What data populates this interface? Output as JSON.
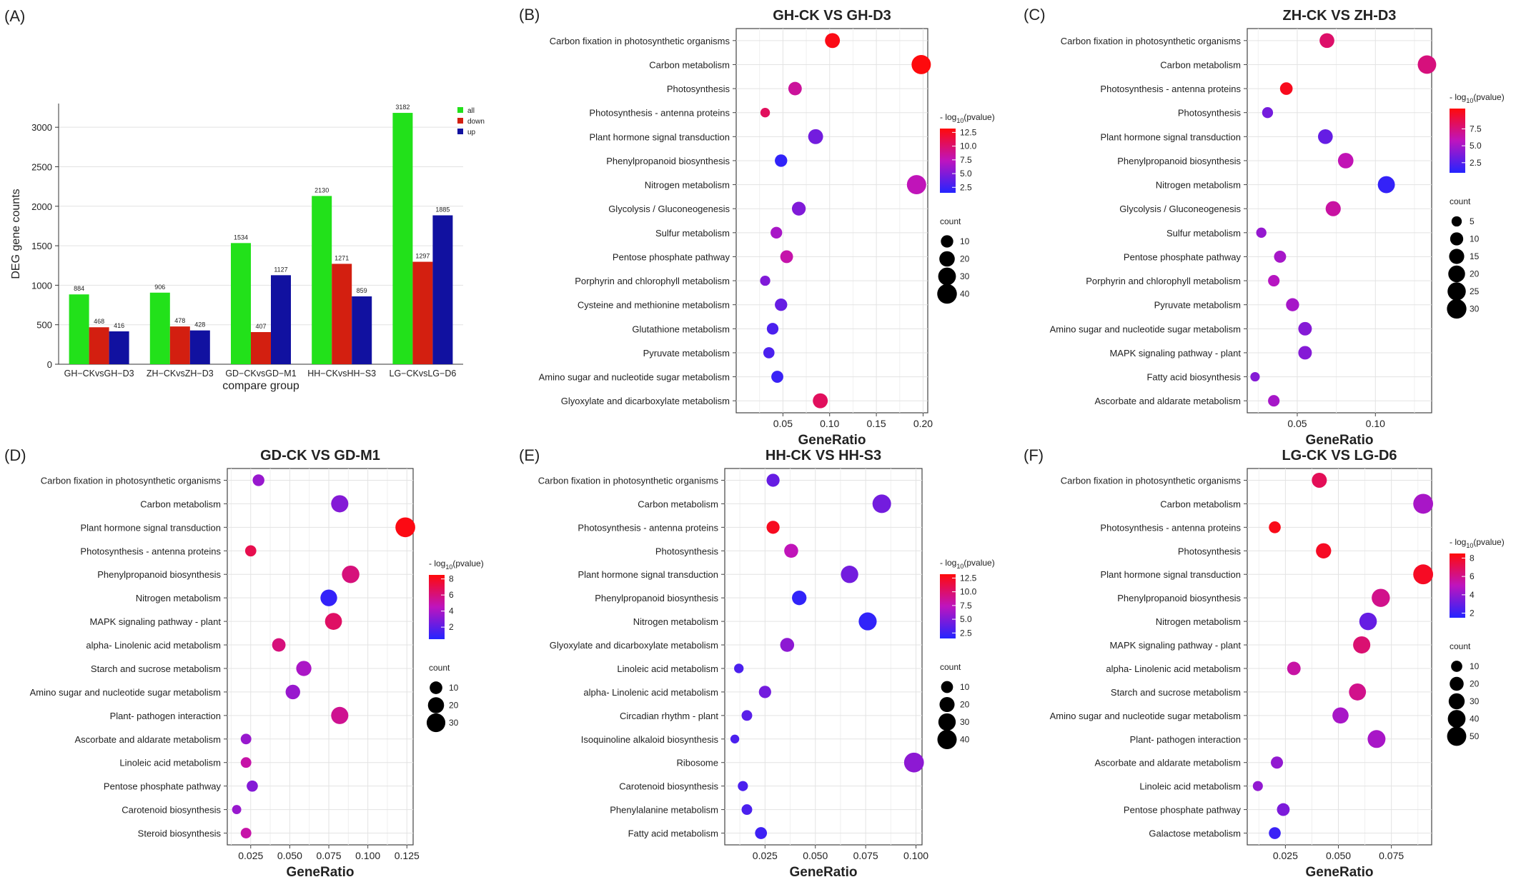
{
  "chart_data": [
    {
      "panel": "(A)",
      "type": "bar",
      "title": "",
      "xlabel": "compare group",
      "ylabel": "DEG gene counts",
      "ylim": [
        0,
        3300
      ],
      "yticks": [
        0,
        500,
        1000,
        1500,
        2000,
        2500,
        3000
      ],
      "grid": true,
      "legend_position": "top-right",
      "categories": [
        "GH−CKvsGH−D3",
        "ZH−CKvsZH−D3",
        "GD−CKvsGD−M1",
        "HH−CKvsHH−S3",
        "LG−CKvsLG−D6"
      ],
      "series": [
        {
          "name": "all",
          "color": "#22e11a",
          "values": [
            884,
            906,
            1534,
            2130,
            3182
          ]
        },
        {
          "name": "down",
          "color": "#d31f10",
          "values": [
            468,
            478,
            407,
            1271,
            1297
          ]
        },
        {
          "name": "up",
          "color": "#1111a0",
          "values": [
            416,
            428,
            1127,
            859,
            1885
          ]
        }
      ]
    },
    {
      "panel": "(B)",
      "type": "scatter",
      "title": "GH-CK VS GH-D3",
      "xlabel": "GeneRatio",
      "xlim": [
        0.0,
        0.205
      ],
      "xticks": [
        0.05,
        0.1,
        0.15,
        0.2
      ],
      "xtick_labels": [
        "0.05",
        "0.10",
        "0.15",
        "0.20"
      ],
      "grid": true,
      "color_legend": {
        "title": "- log10(pvalue)",
        "range": [
          1.5,
          13.2
        ],
        "ticks": [
          2.5,
          5.0,
          7.5,
          10.0,
          12.5
        ],
        "tick_labels": [
          "2.5",
          "5.0",
          "7.5",
          "10.0",
          "12.5"
        ]
      },
      "size_legend": {
        "title": "count",
        "range": [
          1,
          42
        ],
        "values": [
          10,
          20,
          30,
          40
        ]
      },
      "points": [
        {
          "term": "Carbon fixation in photosynthetic organisms",
          "x": 0.103,
          "logp": 12.8,
          "count": 18
        },
        {
          "term": "Carbon metabolism",
          "x": 0.198,
          "logp": 13.1,
          "count": 38
        },
        {
          "term": "Photosynthesis",
          "x": 0.063,
          "logp": 8.5,
          "count": 13
        },
        {
          "term": "Photosynthesis -  antenna proteins",
          "x": 0.031,
          "logp": 10.5,
          "count": 4
        },
        {
          "term": "Plant hormone signal transduction",
          "x": 0.085,
          "logp": 4.5,
          "count": 18
        },
        {
          "term": "Phenylpropanoid biosynthesis",
          "x": 0.048,
          "logp": 2.0,
          "count": 10
        },
        {
          "term": "Nitrogen metabolism",
          "x": 0.193,
          "logp": 7.5,
          "count": 38
        },
        {
          "term": "Glycolysis / Gluconeogenesis",
          "x": 0.067,
          "logp": 5.0,
          "count": 14
        },
        {
          "term": "Sulfur metabolism",
          "x": 0.043,
          "logp": 6.5,
          "count": 8
        },
        {
          "term": "Pentose phosphate pathway",
          "x": 0.054,
          "logp": 8.0,
          "count": 11
        },
        {
          "term": "Porphyrin and chlorophyll metabolism",
          "x": 0.031,
          "logp": 5.0,
          "count": 5
        },
        {
          "term": "Cysteine and methionine metabolism",
          "x": 0.048,
          "logp": 4.0,
          "count": 10
        },
        {
          "term": "Glutathione metabolism",
          "x": 0.039,
          "logp": 3.0,
          "count": 8
        },
        {
          "term": "Pyruvate metabolism",
          "x": 0.035,
          "logp": 3.0,
          "count": 7
        },
        {
          "term": "Amino sugar and nucleotide sugar metabolism",
          "x": 0.044,
          "logp": 2.3,
          "count": 9
        },
        {
          "term": "Glyoxylate and dicarboxylate metabolism",
          "x": 0.09,
          "logp": 10.5,
          "count": 18
        }
      ]
    },
    {
      "panel": "(C)",
      "type": "scatter",
      "title": "ZH-CK VS ZH-D3",
      "xlabel": "GeneRatio",
      "xlim": [
        0.018,
        0.136
      ],
      "xticks": [
        0.05,
        0.1
      ],
      "xtick_labels": [
        "0.05",
        "0.10"
      ],
      "grid": true,
      "color_legend": {
        "title": "- log10(pvalue)",
        "range": [
          1.0,
          10.5
        ],
        "ticks": [
          2.5,
          5.0,
          7.5
        ],
        "tick_labels": [
          "2.5",
          "5.0",
          "7.5"
        ]
      },
      "size_legend": {
        "title": "count",
        "range": [
          2,
          32
        ],
        "values": [
          5,
          10,
          15,
          20,
          25,
          30
        ]
      },
      "points": [
        {
          "term": "Carbon fixation in photosynthetic organisms",
          "x": 0.069,
          "logp": 8.0,
          "count": 14
        },
        {
          "term": "Carbon metabolism",
          "x": 0.133,
          "logp": 7.5,
          "count": 26
        },
        {
          "term": "Photosynthesis -  antenna proteins",
          "x": 0.043,
          "logp": 10.0,
          "count": 9
        },
        {
          "term": "Photosynthesis",
          "x": 0.031,
          "logp": 3.5,
          "count": 6
        },
        {
          "term": "Plant hormone signal transduction",
          "x": 0.068,
          "logp": 3.0,
          "count": 14
        },
        {
          "term": "Phenylpropanoid biosynthesis",
          "x": 0.081,
          "logp": 6.0,
          "count": 16
        },
        {
          "term": "Nitrogen metabolism",
          "x": 0.107,
          "logp": 1.5,
          "count": 21
        },
        {
          "term": "Glycolysis / Gluconeogenesis",
          "x": 0.073,
          "logp": 6.5,
          "count": 15
        },
        {
          "term": "Sulfur metabolism",
          "x": 0.027,
          "logp": 4.5,
          "count": 5
        },
        {
          "term": "Pentose phosphate pathway",
          "x": 0.039,
          "logp": 5.0,
          "count": 8
        },
        {
          "term": "Porphyrin and chlorophyll metabolism",
          "x": 0.035,
          "logp": 5.5,
          "count": 7
        },
        {
          "term": "Pyruvate metabolism",
          "x": 0.047,
          "logp": 5.0,
          "count": 10
        },
        {
          "term": "Amino sugar and nucleotide sugar metabolism",
          "x": 0.055,
          "logp": 4.0,
          "count": 11
        },
        {
          "term": "MAPK signaling pathway -  plant",
          "x": 0.055,
          "logp": 4.0,
          "count": 11
        },
        {
          "term": "Fatty acid biosynthesis",
          "x": 0.023,
          "logp": 4.0,
          "count": 4
        },
        {
          "term": "Ascorbate and aldarate metabolism",
          "x": 0.035,
          "logp": 5.0,
          "count": 7
        }
      ]
    },
    {
      "panel": "(D)",
      "type": "scatter",
      "title": "GD-CK VS GD-M1",
      "xlabel": "GeneRatio",
      "xlim": [
        0.01,
        0.129
      ],
      "xticks": [
        0.025,
        0.05,
        0.075,
        0.1,
        0.125
      ],
      "xtick_labels": [
        "0.025",
        "0.050",
        "0.075",
        "0.100",
        "0.125"
      ],
      "grid": true,
      "color_legend": {
        "title": "- log10(pvalue)",
        "range": [
          0.5,
          8.5
        ],
        "ticks": [
          2,
          4,
          6,
          8
        ],
        "tick_labels": [
          "2",
          "4",
          "6",
          "8"
        ]
      },
      "size_legend": {
        "title": "count",
        "range": [
          2,
          36
        ],
        "values": [
          10,
          20,
          30
        ]
      },
      "points": [
        {
          "term": "Carbon fixation in photosynthetic organisms",
          "x": 0.03,
          "logp": 3.5,
          "count": 8
        },
        {
          "term": "Carbon metabolism",
          "x": 0.082,
          "logp": 3.0,
          "count": 24
        },
        {
          "term": "Plant hormone signal transduction",
          "x": 0.124,
          "logp": 8.3,
          "count": 35
        },
        {
          "term": "Photosynthesis -  antenna proteins",
          "x": 0.025,
          "logp": 7.0,
          "count": 7
        },
        {
          "term": "Phenylpropanoid biosynthesis",
          "x": 0.089,
          "logp": 6.0,
          "count": 25
        },
        {
          "term": "Nitrogen metabolism",
          "x": 0.075,
          "logp": 0.9,
          "count": 22
        },
        {
          "term": "MAPK signaling pathway -  plant",
          "x": 0.078,
          "logp": 6.5,
          "count": 23
        },
        {
          "term": "alpha- Linolenic acid metabolism",
          "x": 0.043,
          "logp": 6.0,
          "count": 12
        },
        {
          "term": "Starch and sucrose metabolism",
          "x": 0.059,
          "logp": 4.0,
          "count": 17
        },
        {
          "term": "Amino sugar and nucleotide sugar metabolism",
          "x": 0.052,
          "logp": 3.5,
          "count": 15
        },
        {
          "term": "Plant- pathogen interaction",
          "x": 0.082,
          "logp": 5.5,
          "count": 24
        },
        {
          "term": "Ascorbate and aldarate metabolism",
          "x": 0.022,
          "logp": 3.5,
          "count": 6
        },
        {
          "term": "Linoleic acid metabolism",
          "x": 0.022,
          "logp": 5.0,
          "count": 6
        },
        {
          "term": "Pentose phosphate pathway",
          "x": 0.026,
          "logp": 3.0,
          "count": 7
        },
        {
          "term": "Carotenoid biosynthesis",
          "x": 0.016,
          "logp": 3.5,
          "count": 4
        },
        {
          "term": "Steroid biosynthesis",
          "x": 0.022,
          "logp": 5.0,
          "count": 6
        }
      ]
    },
    {
      "panel": "(E)",
      "type": "scatter",
      "title": "HH-CK VS HH-S3",
      "xlabel": "GeneRatio",
      "xlim": [
        0.005,
        0.103
      ],
      "xticks": [
        0.025,
        0.05,
        0.075,
        0.1
      ],
      "xtick_labels": [
        "0.025",
        "0.050",
        "0.075",
        "0.100"
      ],
      "grid": true,
      "color_legend": {
        "title": "- log10(pvalue)",
        "range": [
          1.5,
          13.2
        ],
        "ticks": [
          2.5,
          5.0,
          7.5,
          10.0,
          12.5
        ],
        "tick_labels": [
          "2.5",
          "5.0",
          "7.5",
          "10.0",
          "12.5"
        ]
      },
      "size_legend": {
        "title": "count",
        "range": [
          2,
          44
        ],
        "values": [
          10,
          20,
          30,
          40
        ]
      },
      "points": [
        {
          "term": "Carbon fixation in photosynthetic organisms",
          "x": 0.029,
          "logp": 4.0,
          "count": 13
        },
        {
          "term": "Carbon metabolism",
          "x": 0.083,
          "logp": 4.5,
          "count": 36
        },
        {
          "term": "Photosynthesis -  antenna proteins",
          "x": 0.029,
          "logp": 12.5,
          "count": 13
        },
        {
          "term": "Photosynthesis",
          "x": 0.038,
          "logp": 7.5,
          "count": 16
        },
        {
          "term": "Plant hormone signal transduction",
          "x": 0.067,
          "logp": 4.5,
          "count": 30
        },
        {
          "term": "Phenylpropanoid biosynthesis",
          "x": 0.042,
          "logp": 2.0,
          "count": 18
        },
        {
          "term": "Nitrogen metabolism",
          "x": 0.076,
          "logp": 2.0,
          "count": 33
        },
        {
          "term": "Glyoxylate and dicarboxylate metabolism",
          "x": 0.036,
          "logp": 5.5,
          "count": 16
        },
        {
          "term": "Linoleic acid metabolism",
          "x": 0.012,
          "logp": 3.0,
          "count": 5
        },
        {
          "term": "alpha- Linolenic acid metabolism",
          "x": 0.025,
          "logp": 4.5,
          "count": 11
        },
        {
          "term": "Circadian rhythm -  plant",
          "x": 0.016,
          "logp": 3.5,
          "count": 7
        },
        {
          "term": "Isoquinoline alkaloid biosynthesis",
          "x": 0.01,
          "logp": 3.0,
          "count": 4
        },
        {
          "term": "Ribosome",
          "x": 0.099,
          "logp": 5.5,
          "count": 43
        },
        {
          "term": "Carotenoid biosynthesis",
          "x": 0.014,
          "logp": 3.0,
          "count": 6
        },
        {
          "term": "Phenylalanine metabolism",
          "x": 0.016,
          "logp": 3.0,
          "count": 7
        },
        {
          "term": "Fatty acid metabolism",
          "x": 0.023,
          "logp": 2.5,
          "count": 10
        }
      ]
    },
    {
      "panel": "(F)",
      "type": "scatter",
      "title": "LG-CK VS LG-D6",
      "xlabel": "GeneRatio",
      "xlim": [
        0.007,
        0.094
      ],
      "xticks": [
        0.025,
        0.05,
        0.075
      ],
      "xtick_labels": [
        "0.025",
        "0.050",
        "0.075"
      ],
      "grid": true,
      "color_legend": {
        "title": "- log10(pvalue)",
        "range": [
          1.5,
          8.5
        ],
        "ticks": [
          2,
          4,
          6,
          8
        ],
        "tick_labels": [
          "2",
          "4",
          "6",
          "8"
        ]
      },
      "size_legend": {
        "title": "count",
        "range": [
          2,
          56
        ],
        "values": [
          10,
          20,
          30,
          40,
          50
        ]
      },
      "points": [
        {
          "term": "Carbon fixation in photosynthetic organisms",
          "x": 0.041,
          "logp": 7.0,
          "count": 25
        },
        {
          "term": "Carbon metabolism",
          "x": 0.09,
          "logp": 4.5,
          "count": 55
        },
        {
          "term": "Photosynthesis -  antenna proteins",
          "x": 0.02,
          "logp": 8.2,
          "count": 12
        },
        {
          "term": "Photosynthesis",
          "x": 0.043,
          "logp": 8.0,
          "count": 26
        },
        {
          "term": "Plant hormone signal transduction",
          "x": 0.09,
          "logp": 8.0,
          "count": 55
        },
        {
          "term": "Phenylpropanoid biosynthesis",
          "x": 0.07,
          "logp": 6.0,
          "count": 43
        },
        {
          "term": "Nitrogen metabolism",
          "x": 0.064,
          "logp": 3.0,
          "count": 39
        },
        {
          "term": "MAPK signaling pathway -  plant",
          "x": 0.061,
          "logp": 6.5,
          "count": 37
        },
        {
          "term": "alpha- Linolenic acid metabolism",
          "x": 0.029,
          "logp": 5.5,
          "count": 18
        },
        {
          "term": "Starch and sucrose metabolism",
          "x": 0.059,
          "logp": 6.0,
          "count": 36
        },
        {
          "term": "Amino sugar and nucleotide sugar metabolism",
          "x": 0.051,
          "logp": 4.5,
          "count": 31
        },
        {
          "term": "Plant- pathogen interaction",
          "x": 0.068,
          "logp": 4.5,
          "count": 41
        },
        {
          "term": "Ascorbate and aldarate metabolism",
          "x": 0.021,
          "logp": 4.0,
          "count": 13
        },
        {
          "term": "Linoleic acid metabolism",
          "x": 0.012,
          "logp": 4.0,
          "count": 7
        },
        {
          "term": "Pentose phosphate pathway",
          "x": 0.024,
          "logp": 3.5,
          "count": 15
        },
        {
          "term": "Galactose metabolism",
          "x": 0.02,
          "logp": 2.0,
          "count": 12
        }
      ]
    }
  ]
}
